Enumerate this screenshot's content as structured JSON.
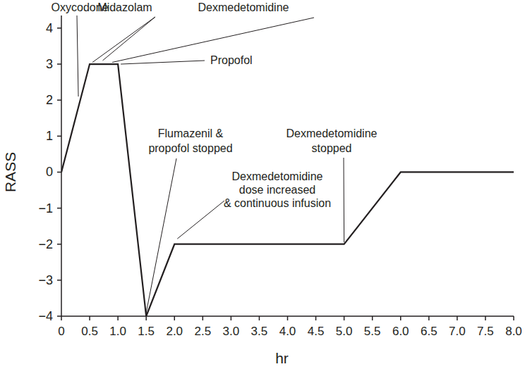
{
  "chart_data": {
    "type": "line",
    "x_label": "hr",
    "y_label": "RASS",
    "x": [
      0,
      0.5,
      1,
      1.5,
      2,
      5,
      6,
      8
    ],
    "series": [
      {
        "color": "#231f20",
        "values": [
          0,
          3,
          3,
          -4,
          -2,
          -2,
          0,
          0
        ]
      }
    ],
    "xlim": [
      0,
      8
    ],
    "ylim": [
      -4,
      4.35
    ],
    "xticks": [
      0,
      0.5,
      {
        "value": 1,
        "label": "1.0"
      },
      1.5,
      {
        "value": 2,
        "label": "2.0"
      },
      2.5,
      {
        "value": 3,
        "label": "3.0"
      },
      3.5,
      {
        "value": 4,
        "label": "4.0"
      },
      4.5,
      {
        "value": 5,
        "label": "5.0"
      },
      5.5,
      {
        "value": 6,
        "label": "6.0"
      },
      6.5,
      {
        "value": 7,
        "label": "7.0"
      },
      7.5,
      {
        "value": 8,
        "label": "8.0"
      }
    ],
    "yticks": [
      -4,
      -3,
      -2,
      -1,
      0,
      1,
      2,
      3,
      4
    ],
    "grid": false,
    "annotations": [
      {
        "text": [
          "Oxycodone"
        ],
        "targets": [
          {
            "x": 0.3,
            "y": 2.1
          }
        ]
      },
      {
        "text": [
          "Midazolam"
        ],
        "targets": [
          {
            "x": 0.55,
            "y": 3.05
          },
          {
            "x": 0.73,
            "y": 3.1
          }
        ]
      },
      {
        "text": [
          "Dexmedetomidine"
        ],
        "targets": [
          {
            "x": 0.9,
            "y": 3.05
          }
        ]
      },
      {
        "text": [
          "Propofol"
        ],
        "targets": [
          {
            "x": 1.05,
            "y": 3
          }
        ]
      },
      {
        "text": [
          "Flumazenil &",
          "propofol stopped"
        ],
        "targets": [
          {
            "x": 1.5,
            "y": -3.9
          }
        ]
      },
      {
        "text": [
          "Dexmedetomidine",
          "dose increased",
          "& continuous infusion"
        ],
        "targets": [
          {
            "x": 2.05,
            "y": -1.85
          }
        ]
      },
      {
        "text": [
          "Dexmedetomidine",
          "stopped"
        ],
        "targets": [
          {
            "x": 5,
            "y": -1.95
          }
        ]
      }
    ]
  }
}
